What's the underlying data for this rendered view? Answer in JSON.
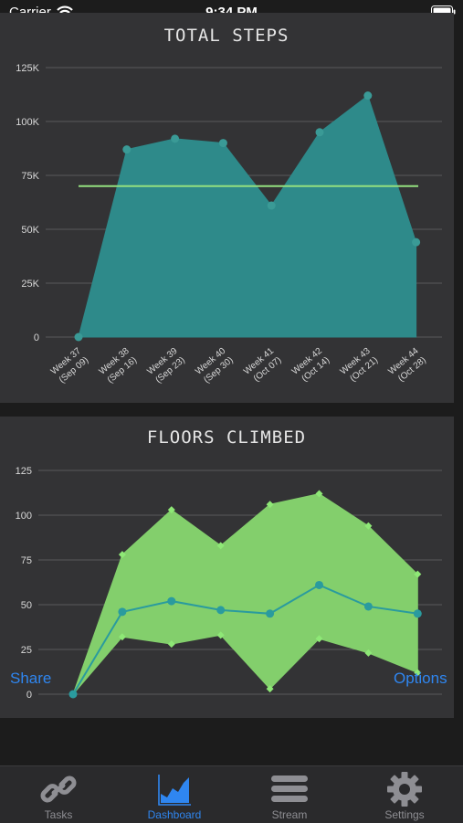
{
  "status_bar": {
    "carrier": "Carrier",
    "time": "9:34 PM"
  },
  "colors": {
    "panel_bg": "#333335",
    "steps_fill": "#2e8a8a",
    "steps_point": "#3a9a96",
    "goal_line": "#93e07f",
    "floors_band": "#83cf6c",
    "floors_band_point": "#8ee876",
    "floors_mid_line": "#2a9b9e",
    "accent_blue": "#2f86f0",
    "inactive_gray": "#8e8e93"
  },
  "chart_data": [
    {
      "type": "area",
      "title": "TOTAL STEPS",
      "categories": [
        "Week 37\n(Sep 09)",
        "Week 38\n(Sep 16)",
        "Week 39\n(Sep 23)",
        "Week 40\n(Sep 30)",
        "Week 41\n(Oct 07)",
        "Week 42\n(Oct 14)",
        "Week 43\n(Oct 21)",
        "Week 44\n(Oct 28)"
      ],
      "series": [
        {
          "values": [
            0,
            87000,
            92000,
            90000,
            61000,
            95000,
            112000,
            44000
          ]
        }
      ],
      "goal": 70000,
      "ylim": [
        0,
        125000
      ],
      "yticks": [
        0,
        25000,
        50000,
        75000,
        100000,
        125000
      ],
      "ytick_labels": [
        "0",
        "25K",
        "50K",
        "75K",
        "100K",
        "125K"
      ],
      "grid": true
    },
    {
      "type": "area",
      "title": "FLOORS CLIMBED",
      "x": [
        0,
        1,
        2,
        3,
        4,
        5,
        6,
        7
      ],
      "series": [
        {
          "values": [
            0,
            78,
            103,
            83,
            106,
            112,
            94,
            67
          ]
        },
        {
          "values": [
            0,
            32,
            28,
            33,
            3,
            31,
            23,
            12
          ]
        },
        {
          "values": [
            0,
            46,
            52,
            47,
            45,
            61,
            49,
            45
          ]
        }
      ],
      "ylim": [
        0,
        125
      ],
      "yticks": [
        0,
        25,
        50,
        75,
        100,
        125
      ],
      "ytick_labels": [
        "0",
        "25",
        "50",
        "75",
        "100",
        "125"
      ],
      "grid": true
    }
  ],
  "overlay": {
    "share_label": "Share",
    "options_label": "Options"
  },
  "tabs": [
    {
      "label": "Tasks",
      "icon": "link-icon"
    },
    {
      "label": "Dashboard",
      "icon": "area-chart-icon"
    },
    {
      "label": "Stream",
      "icon": "stream-icon"
    },
    {
      "label": "Settings",
      "icon": "gear-icon"
    }
  ]
}
